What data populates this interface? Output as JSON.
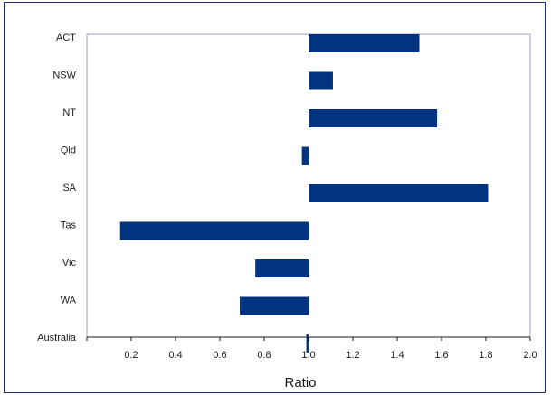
{
  "chart_data": {
    "type": "bar",
    "orientation": "horizontal",
    "baseline": 1.0,
    "categories": [
      "ACT",
      "NSW",
      "NT",
      "Qld",
      "SA",
      "Tas",
      "Vic",
      "WA",
      "Australia"
    ],
    "values": [
      1.5,
      1.11,
      1.58,
      0.97,
      1.81,
      0.15,
      0.76,
      0.69,
      0.99
    ],
    "xlabel": "Ratio",
    "xlim": [
      0,
      2
    ],
    "xticks": [
      "0.2",
      "0.4",
      "0.6",
      "0.8",
      "1.0",
      "1.2",
      "1.4",
      "1.6",
      "1.8",
      "2.0"
    ],
    "bar_color": "#003380",
    "grid": false
  }
}
